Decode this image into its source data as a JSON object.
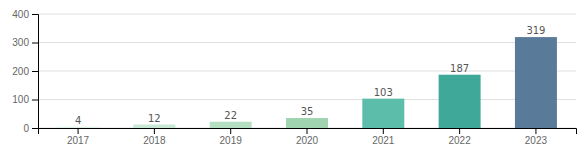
{
  "chart_data": {
    "type": "bar",
    "categories": [
      "2017",
      "2018",
      "2019",
      "2020",
      "2021",
      "2022",
      "2023"
    ],
    "values": [
      4,
      12,
      22,
      35,
      103,
      187,
      319
    ],
    "colors": [
      "#ddf0e6",
      "#c8e8d5",
      "#b5dfc3",
      "#a0d4b0",
      "#5cbdaa",
      "#40a898",
      "#5a7a9a"
    ],
    "ylim": [
      0,
      400
    ],
    "yticks": [
      0,
      100,
      200,
      300,
      400
    ],
    "grid": true,
    "data_labels": true
  }
}
